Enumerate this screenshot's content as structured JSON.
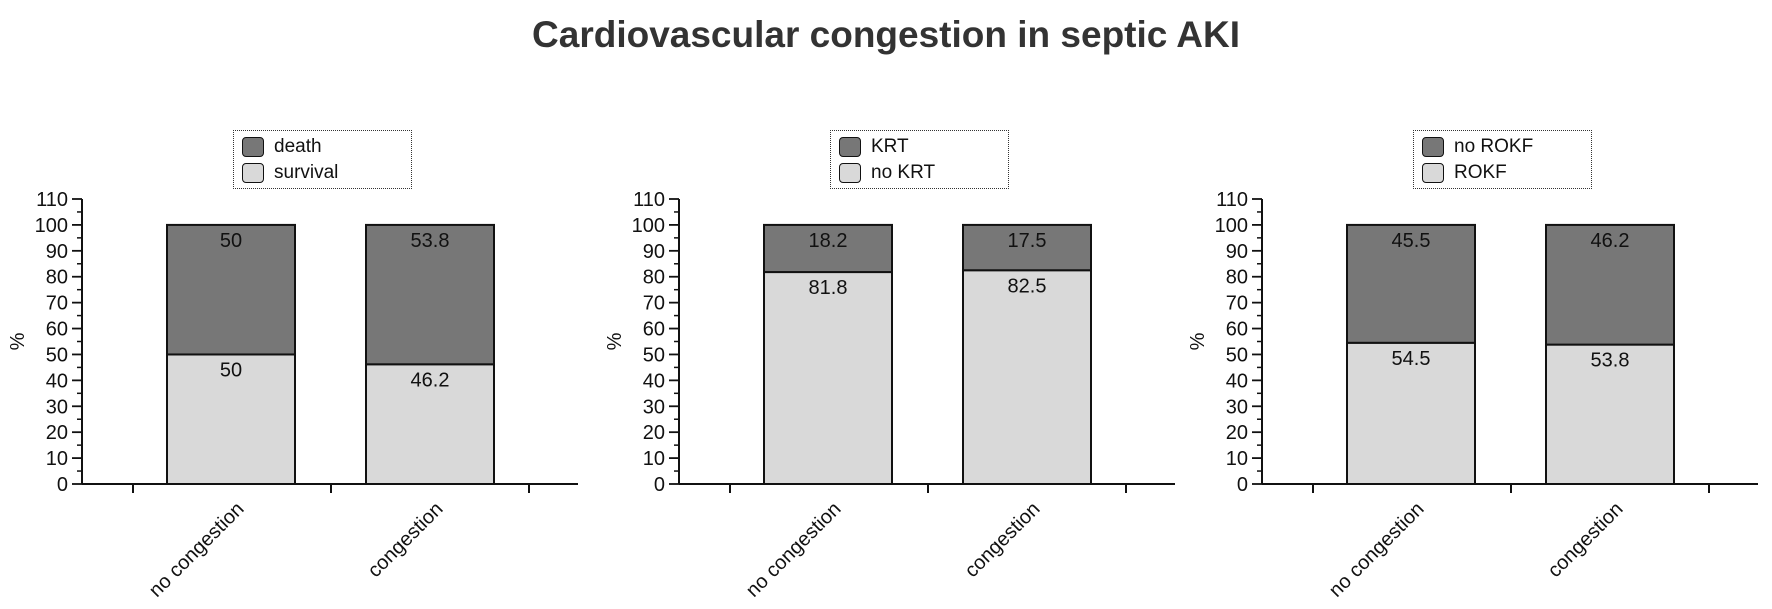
{
  "title": "Cardiovascular congestion in septic AKI",
  "colors": {
    "top": "#777777",
    "bottom": "#d9d9d9",
    "border": "#111111",
    "axis": "#111111"
  },
  "chart_data": [
    {
      "type": "bar",
      "stacked": true,
      "categories": [
        "no congestion",
        "congestion"
      ],
      "ylabel": "%",
      "ylim": [
        0,
        110
      ],
      "yticks": [
        0,
        10,
        20,
        30,
        40,
        50,
        60,
        70,
        80,
        90,
        100,
        110
      ],
      "legend_position": "top-center",
      "series": [
        {
          "name": "survival",
          "color": "#d9d9d9",
          "values": [
            50,
            46.2
          ],
          "labels": [
            "50",
            "46.2"
          ]
        },
        {
          "name": "death",
          "color": "#777777",
          "values": [
            50,
            53.8
          ],
          "labels": [
            "50",
            "53.8"
          ]
        }
      ],
      "legend": [
        "death",
        "survival"
      ]
    },
    {
      "type": "bar",
      "stacked": true,
      "categories": [
        "no congestion",
        "congestion"
      ],
      "ylabel": "%",
      "ylim": [
        0,
        110
      ],
      "yticks": [
        0,
        10,
        20,
        30,
        40,
        50,
        60,
        70,
        80,
        90,
        100,
        110
      ],
      "legend_position": "top-center",
      "series": [
        {
          "name": "no KRT",
          "color": "#d9d9d9",
          "values": [
            81.8,
            82.5
          ],
          "labels": [
            "81.8",
            "82.5"
          ]
        },
        {
          "name": "KRT",
          "color": "#777777",
          "values": [
            18.2,
            17.5
          ],
          "labels": [
            "18.2",
            "17.5"
          ]
        }
      ],
      "legend": [
        "KRT",
        "no KRT"
      ]
    },
    {
      "type": "bar",
      "stacked": true,
      "categories": [
        "no congestion",
        "congestion"
      ],
      "ylabel": "%",
      "ylim": [
        0,
        110
      ],
      "yticks": [
        0,
        10,
        20,
        30,
        40,
        50,
        60,
        70,
        80,
        90,
        100,
        110
      ],
      "legend_position": "top-center",
      "series": [
        {
          "name": "ROKF",
          "color": "#d9d9d9",
          "values": [
            54.5,
            53.8
          ],
          "labels": [
            "54.5",
            "53.8"
          ]
        },
        {
          "name": "no ROKF",
          "color": "#777777",
          "values": [
            45.5,
            46.2
          ],
          "labels": [
            "45.5",
            "46.2"
          ]
        }
      ],
      "legend": [
        "no ROKF",
        "ROKF"
      ]
    }
  ]
}
